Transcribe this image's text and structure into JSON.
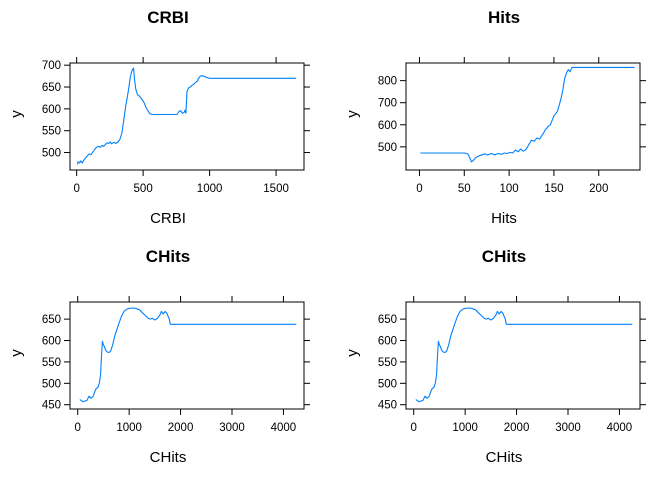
{
  "chart_data": [
    {
      "type": "line",
      "title": "CRBI",
      "xlabel": "CRBI",
      "ylabel": "y",
      "xlim": [
        -50,
        1710
      ],
      "ylim": [
        460,
        705
      ],
      "x_ticks": [
        0,
        500,
        1000,
        1500
      ],
      "y_ticks": [
        500,
        550,
        600,
        650,
        700
      ],
      "line_color": "#0080ff",
      "series": [
        {
          "x": [
            5,
            12,
            22,
            32,
            42,
            55,
            68,
            80,
            95,
            108,
            120,
            135,
            150,
            165,
            178,
            190,
            203,
            215,
            228,
            240,
            252,
            262,
            272,
            282,
            295,
            310,
            325,
            340,
            355,
            368,
            380,
            392,
            402,
            412,
            420,
            428,
            435,
            445,
            458,
            470,
            480,
            490,
            500,
            510,
            520,
            535,
            550,
            570,
            600,
            640,
            680,
            720,
            755,
            770,
            782,
            795,
            808,
            815,
            822,
            830,
            842,
            855,
            868,
            880,
            892,
            905,
            918,
            930,
            950,
            975,
            1000,
            1100,
            1200,
            1300,
            1400,
            1500,
            1600,
            1650
          ],
          "y": [
            473,
            479,
            476,
            481,
            476,
            483,
            488,
            492,
            497,
            495,
            500,
            507,
            512,
            514,
            512,
            516,
            514,
            518,
            522,
            521,
            524,
            520,
            522,
            523,
            521,
            524,
            530,
            545,
            575,
            605,
            625,
            648,
            670,
            683,
            690,
            693,
            668,
            645,
            632,
            630,
            626,
            622,
            618,
            612,
            604,
            596,
            589,
            587,
            587,
            587,
            587,
            587,
            587,
            594,
            596,
            590,
            592,
            597,
            590,
            640,
            648,
            650,
            654,
            656,
            660,
            663,
            670,
            675,
            676,
            672,
            670,
            670,
            670,
            670,
            670,
            670,
            670,
            670
          ]
        }
      ]
    },
    {
      "type": "line",
      "title": "Hits",
      "xlabel": "Hits",
      "ylabel": "y",
      "xlim": [
        -15,
        246
      ],
      "ylim": [
        395,
        880
      ],
      "x_ticks": [
        0,
        50,
        100,
        150,
        200
      ],
      "y_ticks": [
        500,
        600,
        700,
        800
      ],
      "line_color": "#0080ff",
      "series": [
        {
          "x": [
            1,
            10,
            20,
            30,
            40,
            50,
            54,
            56,
            58,
            60,
            63,
            67,
            70,
            73,
            76,
            80,
            84,
            88,
            91,
            95,
            98,
            101,
            104,
            107,
            110,
            113,
            116,
            119,
            122,
            125,
            128,
            131,
            134,
            136,
            138,
            140,
            142,
            144,
            146,
            148,
            150,
            152,
            154,
            156,
            158,
            160,
            162,
            164,
            166,
            168,
            170,
            175,
            180,
            200,
            220,
            240
          ],
          "y": [
            472,
            472,
            472,
            472,
            472,
            472,
            468,
            450,
            432,
            438,
            452,
            460,
            464,
            468,
            463,
            470,
            464,
            470,
            466,
            472,
            470,
            475,
            472,
            485,
            478,
            490,
            480,
            488,
            510,
            530,
            525,
            540,
            535,
            548,
            560,
            575,
            585,
            595,
            600,
            620,
            640,
            650,
            662,
            690,
            720,
            760,
            810,
            835,
            850,
            840,
            860,
            860,
            860,
            860,
            860,
            860
          ]
        }
      ]
    },
    {
      "type": "line",
      "title": "CHits",
      "xlabel": "CHits",
      "ylabel": "y",
      "xlim": [
        -150,
        4400
      ],
      "ylim": [
        440,
        690
      ],
      "x_ticks": [
        0,
        1000,
        2000,
        3000,
        4000
      ],
      "y_ticks": [
        450,
        500,
        550,
        600,
        650
      ],
      "line_color": "#0080ff",
      "series": [
        {
          "x": [
            40,
            100,
            180,
            220,
            260,
            300,
            330,
            360,
            390,
            420,
            445,
            460,
            480,
            500,
            520,
            540,
            560,
            580,
            610,
            640,
            680,
            720,
            760,
            800,
            850,
            900,
            950,
            1000,
            1100,
            1200,
            1250,
            1300,
            1350,
            1400,
            1450,
            1500,
            1550,
            1600,
            1630,
            1660,
            1700,
            1740,
            1780,
            1800,
            1850,
            1900,
            2000,
            2500,
            3000,
            3500,
            4000,
            4250
          ],
          "y": [
            462,
            457,
            460,
            470,
            465,
            470,
            480,
            488,
            490,
            500,
            520,
            560,
            598,
            590,
            585,
            578,
            575,
            573,
            572,
            575,
            590,
            610,
            625,
            640,
            656,
            668,
            673,
            675,
            676,
            672,
            666,
            660,
            654,
            650,
            652,
            648,
            652,
            660,
            668,
            662,
            668,
            662,
            650,
            638,
            638,
            638,
            638,
            638,
            638,
            638,
            638,
            638
          ]
        }
      ]
    },
    {
      "type": "line",
      "title": "CHits",
      "xlabel": "CHits",
      "ylabel": "y",
      "xlim": [
        -150,
        4400
      ],
      "ylim": [
        440,
        690
      ],
      "x_ticks": [
        0,
        1000,
        2000,
        3000,
        4000
      ],
      "y_ticks": [
        450,
        500,
        550,
        600,
        650
      ],
      "line_color": "#0080ff",
      "series": [
        {
          "x": [
            40,
            100,
            180,
            220,
            260,
            300,
            330,
            360,
            390,
            420,
            445,
            460,
            480,
            500,
            520,
            540,
            560,
            580,
            610,
            640,
            680,
            720,
            760,
            800,
            850,
            900,
            950,
            1000,
            1100,
            1200,
            1250,
            1300,
            1350,
            1400,
            1450,
            1500,
            1550,
            1600,
            1630,
            1660,
            1700,
            1740,
            1780,
            1800,
            1850,
            1900,
            2000,
            2500,
            3000,
            3500,
            4000,
            4250
          ],
          "y": [
            462,
            457,
            460,
            470,
            465,
            470,
            480,
            488,
            490,
            500,
            520,
            560,
            598,
            590,
            585,
            578,
            575,
            573,
            572,
            575,
            590,
            610,
            625,
            640,
            656,
            668,
            673,
            675,
            676,
            672,
            666,
            660,
            654,
            650,
            652,
            648,
            652,
            660,
            668,
            662,
            668,
            662,
            650,
            638,
            638,
            638,
            638,
            638,
            638,
            638,
            638,
            638
          ]
        }
      ]
    }
  ]
}
